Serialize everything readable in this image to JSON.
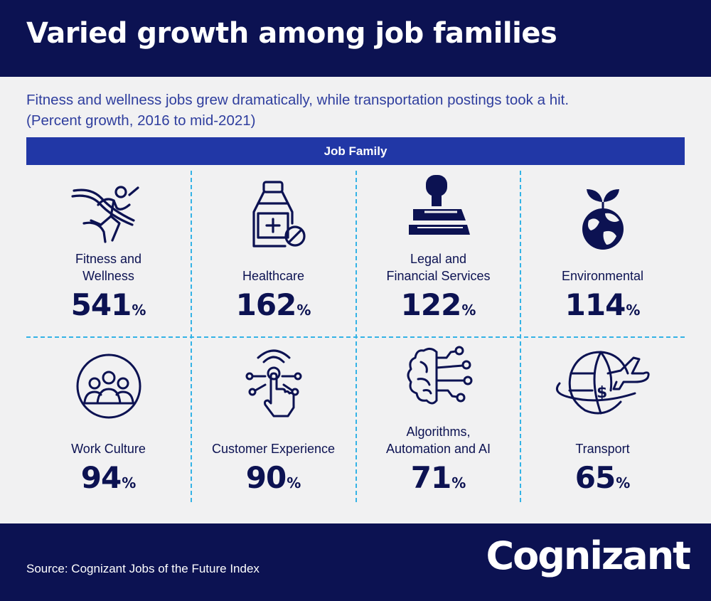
{
  "title": "Varied growth among job families",
  "subtitle_lines": [
    "Fitness and wellness jobs grew dramatically, while transportation postings took a hit.",
    "(Percent growth, 2016 to mid-2021)"
  ],
  "header_bar": "Job Family",
  "source": "Source: Cognizant Jobs of the Future Index",
  "logo": "Cognizant",
  "colors": {
    "navy": "#0c1252",
    "blue_bar": "#2137a6",
    "subtitle": "#2f3e9e",
    "divider": "#34b3e6",
    "panel": "#f1f1f2"
  },
  "cells": [
    {
      "icon": "runner-icon",
      "label_lines": [
        "Fitness and",
        "Wellness"
      ],
      "value": "541",
      "unit": "%"
    },
    {
      "icon": "medicine-bottle-icon",
      "label_lines": [
        "Healthcare"
      ],
      "value": "162",
      "unit": "%"
    },
    {
      "icon": "stamp-icon",
      "label_lines": [
        "Legal and",
        "Financial Services"
      ],
      "value": "122",
      "unit": "%"
    },
    {
      "icon": "globe-sprout-icon",
      "label_lines": [
        "Environmental"
      ],
      "value": "114",
      "unit": "%"
    },
    {
      "icon": "team-icon",
      "label_lines": [
        "Work Culture"
      ],
      "value": "94",
      "unit": "%"
    },
    {
      "icon": "touch-hand-icon",
      "label_lines": [
        "Customer Experience"
      ],
      "value": "90",
      "unit": "%"
    },
    {
      "icon": "brain-circuit-icon",
      "label_lines": [
        "Algorithms,",
        "Automation and AI"
      ],
      "value": "71",
      "unit": "%"
    },
    {
      "icon": "globe-plane-icon",
      "label_lines": [
        "Transport"
      ],
      "value": "65",
      "unit": "%"
    }
  ],
  "chart_data": {
    "type": "table",
    "title": "Varied growth among job families",
    "subtitle": "Fitness and wellness jobs grew dramatically, while transportation postings took a hit. (Percent growth, 2016 to mid-2021)",
    "column_header": "Job Family",
    "categories": [
      "Fitness and Wellness",
      "Healthcare",
      "Legal and Financial Services",
      "Environmental",
      "Work Culture",
      "Customer Experience",
      "Algorithms, Automation and AI",
      "Transport"
    ],
    "values": [
      541,
      162,
      122,
      114,
      94,
      90,
      71,
      65
    ],
    "unit": "%"
  }
}
